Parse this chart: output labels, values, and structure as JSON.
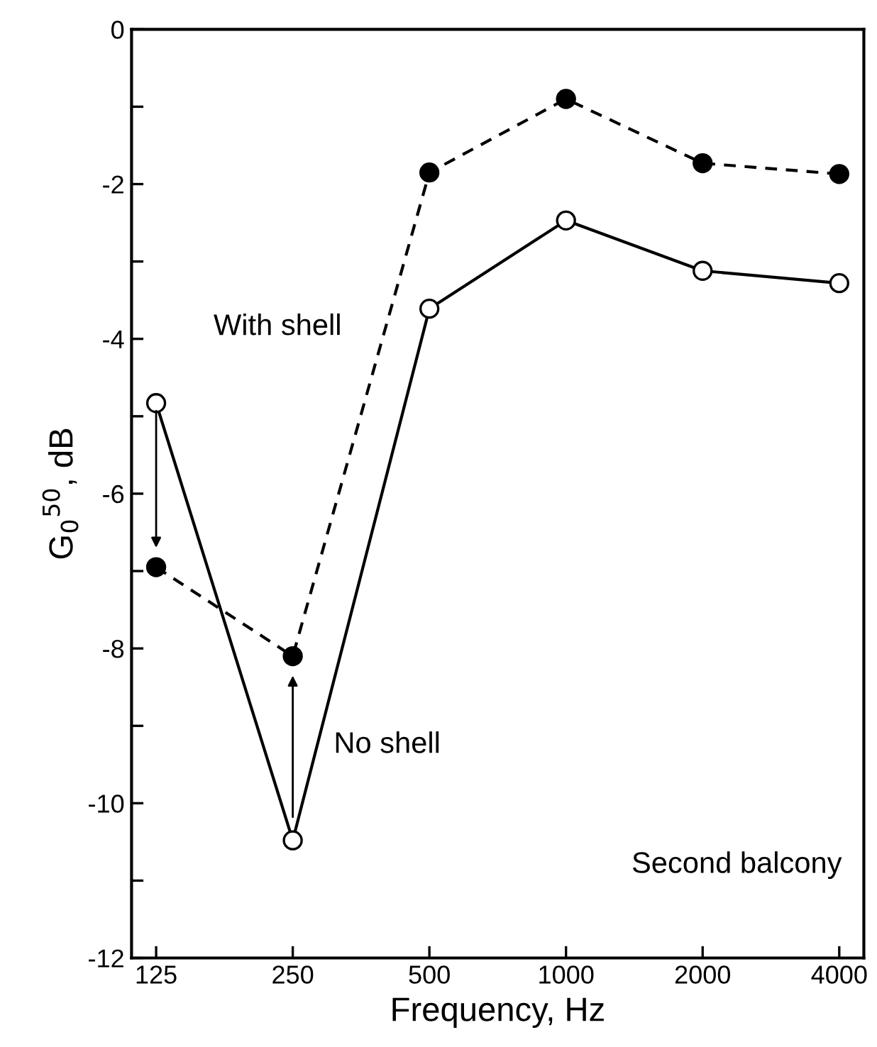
{
  "chart_data": {
    "type": "line",
    "xlabel": "Frequency, Hz",
    "ylabel": "G$_{0}$$^{50}$, dB",
    "categories": [
      "125",
      "250",
      "500",
      "1000",
      "2000",
      "4000"
    ],
    "series": [
      {
        "name": "With shell",
        "color": "#000000",
        "line_style": "dashed",
        "values": [
          -6.95,
          -8.1,
          -1.85,
          -0.9,
          -1.73,
          -1.87
        ]
      },
      {
        "name": "No shell",
        "color": "#000000",
        "line_style": "solid",
        "values": [
          -4.83,
          -10.48,
          -3.61,
          -2.47,
          -3.12,
          -3.28
        ]
      }
    ],
    "marker": "circle",
    "ylim": [
      -12,
      0
    ],
    "yticks": [
      0,
      {
        "value": -1,
        "label": null
      },
      -2,
      {
        "value": -3,
        "label": null
      },
      -4,
      {
        "value": -5,
        "label": null
      },
      -6,
      {
        "value": -7,
        "label": null
      },
      -8,
      {
        "value": -9,
        "label": null
      },
      -10,
      {
        "value": -11,
        "label": null
      },
      -12
    ],
    "annotations": [
      "Second balcony"
    ],
    "grid": false,
    "legend": false
  }
}
